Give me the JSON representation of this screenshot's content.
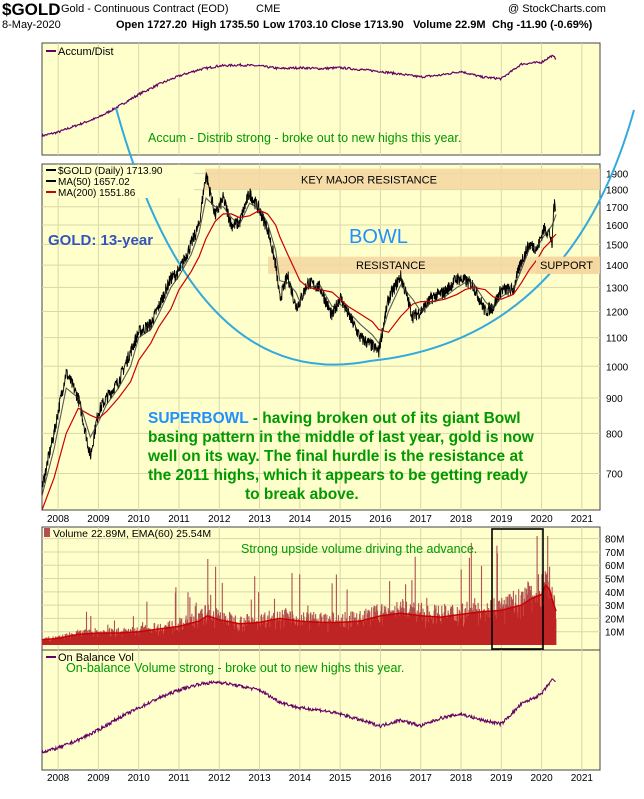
{
  "header": {
    "symbol": "$GOLD",
    "description": "Gold - Continuous Contract (EOD)",
    "exchange": "CME",
    "date": "8-May-2020",
    "open": "Open 1727.20",
    "high": "High 1735.50",
    "low": "Low 1703.10",
    "close": "Close 1713.90",
    "volume": "Volume 22.9M",
    "change": "Chg -11.90 (-0.69%)",
    "copyright": "@ StockCharts.com"
  },
  "colors": {
    "panel_bg": "#FFFFCC",
    "price": "#000000",
    "ma50": "#000000",
    "ma200": "#CC0000",
    "indicator_line": "#660066",
    "bowl": "#33AADD",
    "zone": "#F5D7A0",
    "green_text": "#009900",
    "blue_title": "#3355BB",
    "bowl_label": "#1E90FF",
    "volume_fill": "#CC0000",
    "volume_bar": "#B05050"
  },
  "panels": {
    "accum": {
      "label": "Accum/Dist",
      "annotation": "Accum - Distrib strong - broke out to new highs this year."
    },
    "price": {
      "legend": [
        "$GOLD (Daily) 1713.90",
        "MA(50) 1657.02",
        "MA(200) 1551.86"
      ],
      "title": "GOLD: 13-year",
      "bowl_label": "BOWL",
      "key_resistance_label": "KEY MAJOR RESISTANCE",
      "resistance_label": "RESISTANCE",
      "support_label": "SUPPORT",
      "commentary_lead": "SUPERBOWL",
      "commentary_line1": " - having broken out of its giant Bowl",
      "commentary_line2": "basing pattern in the middle of last year, gold is now",
      "commentary_line3": "well on its way. The final hurdle is the resistance at",
      "commentary_line4": "the 2011 highs, which it appears to be getting ready",
      "commentary_line5": "to break above."
    },
    "volume": {
      "legend": "Volume 22.89M, EMA(60) 25.54M",
      "annotation": "Strong upside volume driving the advance."
    },
    "obv": {
      "label": "On Balance Vol",
      "annotation": "On-balance Volume strong - broke out to new highs this year."
    }
  },
  "x_axis_years": [
    "2008",
    "2009",
    "2010",
    "2011",
    "2012",
    "2013",
    "2014",
    "2015",
    "2016",
    "2017",
    "2018",
    "2019",
    "2020",
    "2021"
  ],
  "chart_data": [
    {
      "type": "line",
      "panel": "accum",
      "title": "Accum/Dist",
      "x": [
        2007.6,
        2008.0,
        2008.5,
        2009.0,
        2009.5,
        2010.0,
        2010.5,
        2011.0,
        2011.5,
        2012.0,
        2012.5,
        2013.0,
        2013.5,
        2014.0,
        2014.5,
        2015.0,
        2015.5,
        2016.0,
        2016.5,
        2017.0,
        2017.5,
        2018.0,
        2018.5,
        2019.0,
        2019.5,
        2020.0,
        2020.25,
        2020.36
      ],
      "series": [
        {
          "values": [
            10,
            14,
            22,
            30,
            42,
            55,
            66,
            75,
            82,
            86,
            87,
            86,
            83,
            84,
            83,
            84,
            82,
            80,
            77,
            74,
            76,
            80,
            74,
            72,
            88,
            90,
            97,
            94
          ]
        }
      ],
      "ylim": [
        0,
        100
      ]
    },
    {
      "type": "line",
      "panel": "price",
      "log_scale": true,
      "title": "$GOLD (Daily) 1713.90",
      "x": [
        2007.6,
        2007.9,
        2008.2,
        2008.5,
        2008.8,
        2009.0,
        2009.2,
        2009.5,
        2009.8,
        2010.0,
        2010.3,
        2010.5,
        2010.8,
        2011.0,
        2011.3,
        2011.5,
        2011.67,
        2011.9,
        2012.1,
        2012.3,
        2012.5,
        2012.75,
        2013.0,
        2013.2,
        2013.4,
        2013.5,
        2013.7,
        2013.9,
        2014.0,
        2014.2,
        2014.5,
        2014.8,
        2015.0,
        2015.2,
        2015.5,
        2015.8,
        2015.96,
        2016.2,
        2016.5,
        2016.8,
        2017.0,
        2017.3,
        2017.6,
        2017.9,
        2018.1,
        2018.3,
        2018.6,
        2018.8,
        2019.0,
        2019.3,
        2019.5,
        2019.7,
        2019.9,
        2020.05,
        2020.2,
        2020.26,
        2020.3,
        2020.36
      ],
      "series": [
        {
          "name": "$GOLD (Daily)",
          "values": [
            665,
            800,
            980,
            900,
            740,
            860,
            900,
            950,
            1050,
            1120,
            1150,
            1220,
            1340,
            1370,
            1500,
            1600,
            1895,
            1650,
            1750,
            1600,
            1610,
            1780,
            1680,
            1580,
            1400,
            1250,
            1350,
            1220,
            1240,
            1320,
            1300,
            1180,
            1260,
            1190,
            1100,
            1070,
            1050,
            1250,
            1350,
            1180,
            1200,
            1260,
            1280,
            1340,
            1330,
            1310,
            1200,
            1220,
            1290,
            1290,
            1420,
            1500,
            1480,
            1580,
            1560,
            1480,
            1700,
            1714
          ]
        },
        {
          "name": "MA(50)",
          "values": [
            650,
            760,
            930,
            900,
            790,
            830,
            880,
            930,
            1000,
            1100,
            1130,
            1190,
            1300,
            1350,
            1450,
            1560,
            1750,
            1700,
            1700,
            1640,
            1600,
            1720,
            1690,
            1610,
            1470,
            1330,
            1320,
            1280,
            1240,
            1300,
            1310,
            1220,
            1230,
            1200,
            1150,
            1110,
            1080,
            1200,
            1310,
            1250,
            1200,
            1240,
            1260,
            1300,
            1320,
            1320,
            1240,
            1210,
            1260,
            1290,
            1380,
            1480,
            1490,
            1540,
            1580,
            1600,
            1620,
            1657
          ]
        },
        {
          "name": "MA(200)",
          "values": [
            620,
            690,
            800,
            870,
            850,
            840,
            860,
            900,
            950,
            1020,
            1080,
            1140,
            1210,
            1290,
            1370,
            1440,
            1530,
            1620,
            1660,
            1660,
            1640,
            1650,
            1680,
            1660,
            1600,
            1540,
            1450,
            1370,
            1330,
            1300,
            1290,
            1280,
            1250,
            1220,
            1190,
            1160,
            1130,
            1120,
            1180,
            1230,
            1240,
            1240,
            1250,
            1270,
            1290,
            1300,
            1290,
            1260,
            1250,
            1270,
            1320,
            1380,
            1430,
            1480,
            1510,
            1530,
            1540,
            1552
          ]
        }
      ],
      "y_ticks": [
        700,
        800,
        900,
        1000,
        1100,
        1200,
        1300,
        1400,
        1500,
        1600,
        1700,
        1800,
        1900
      ],
      "ylim": [
        620,
        1960
      ],
      "annotations": [
        "KEY MAJOR RESISTANCE",
        "RESISTANCE",
        "SUPPORT",
        "BOWL",
        "GOLD: 13-year"
      ]
    },
    {
      "type": "bar",
      "panel": "volume",
      "title": "Volume 22.89M, EMA(60) 25.54M",
      "x": [
        2007.6,
        2008.0,
        2008.5,
        2009.0,
        2009.5,
        2010.0,
        2010.5,
        2011.0,
        2011.5,
        2011.7,
        2012.0,
        2012.5,
        2013.0,
        2013.5,
        2014.0,
        2014.5,
        2015.0,
        2015.5,
        2016.0,
        2016.5,
        2017.0,
        2017.5,
        2018.0,
        2018.5,
        2019.0,
        2019.5,
        2019.75,
        2020.0,
        2020.1,
        2020.2,
        2020.3,
        2020.36
      ],
      "series": [
        {
          "name": "Volume EMA(60)",
          "values": [
            4,
            5,
            8,
            9,
            9,
            10,
            12,
            14,
            18,
            22,
            19,
            16,
            17,
            20,
            18,
            17,
            17,
            18,
            22,
            24,
            22,
            21,
            23,
            25,
            26,
            30,
            35,
            38,
            45,
            42,
            30,
            25.5
          ]
        }
      ],
      "y_ticks": [
        "10M",
        "20M",
        "30M",
        "40M",
        "50M",
        "60M",
        "70M",
        "80M"
      ],
      "ylim": [
        0,
        85
      ]
    },
    {
      "type": "line",
      "panel": "obv",
      "title": "On Balance Vol",
      "x": [
        2007.6,
        2008.0,
        2008.5,
        2009.0,
        2009.5,
        2010.0,
        2010.5,
        2011.0,
        2011.5,
        2012.0,
        2012.5,
        2013.0,
        2013.5,
        2014.0,
        2014.5,
        2015.0,
        2015.5,
        2016.0,
        2016.5,
        2017.0,
        2017.5,
        2018.0,
        2018.5,
        2019.0,
        2019.5,
        2020.0,
        2020.25,
        2020.36
      ],
      "series": [
        {
          "values": [
            8,
            12,
            20,
            30,
            42,
            52,
            62,
            70,
            76,
            78,
            74,
            70,
            58,
            52,
            50,
            46,
            40,
            34,
            40,
            34,
            42,
            46,
            40,
            36,
            56,
            66,
            80,
            78
          ]
        }
      ],
      "ylim": [
        0,
        100
      ]
    }
  ]
}
